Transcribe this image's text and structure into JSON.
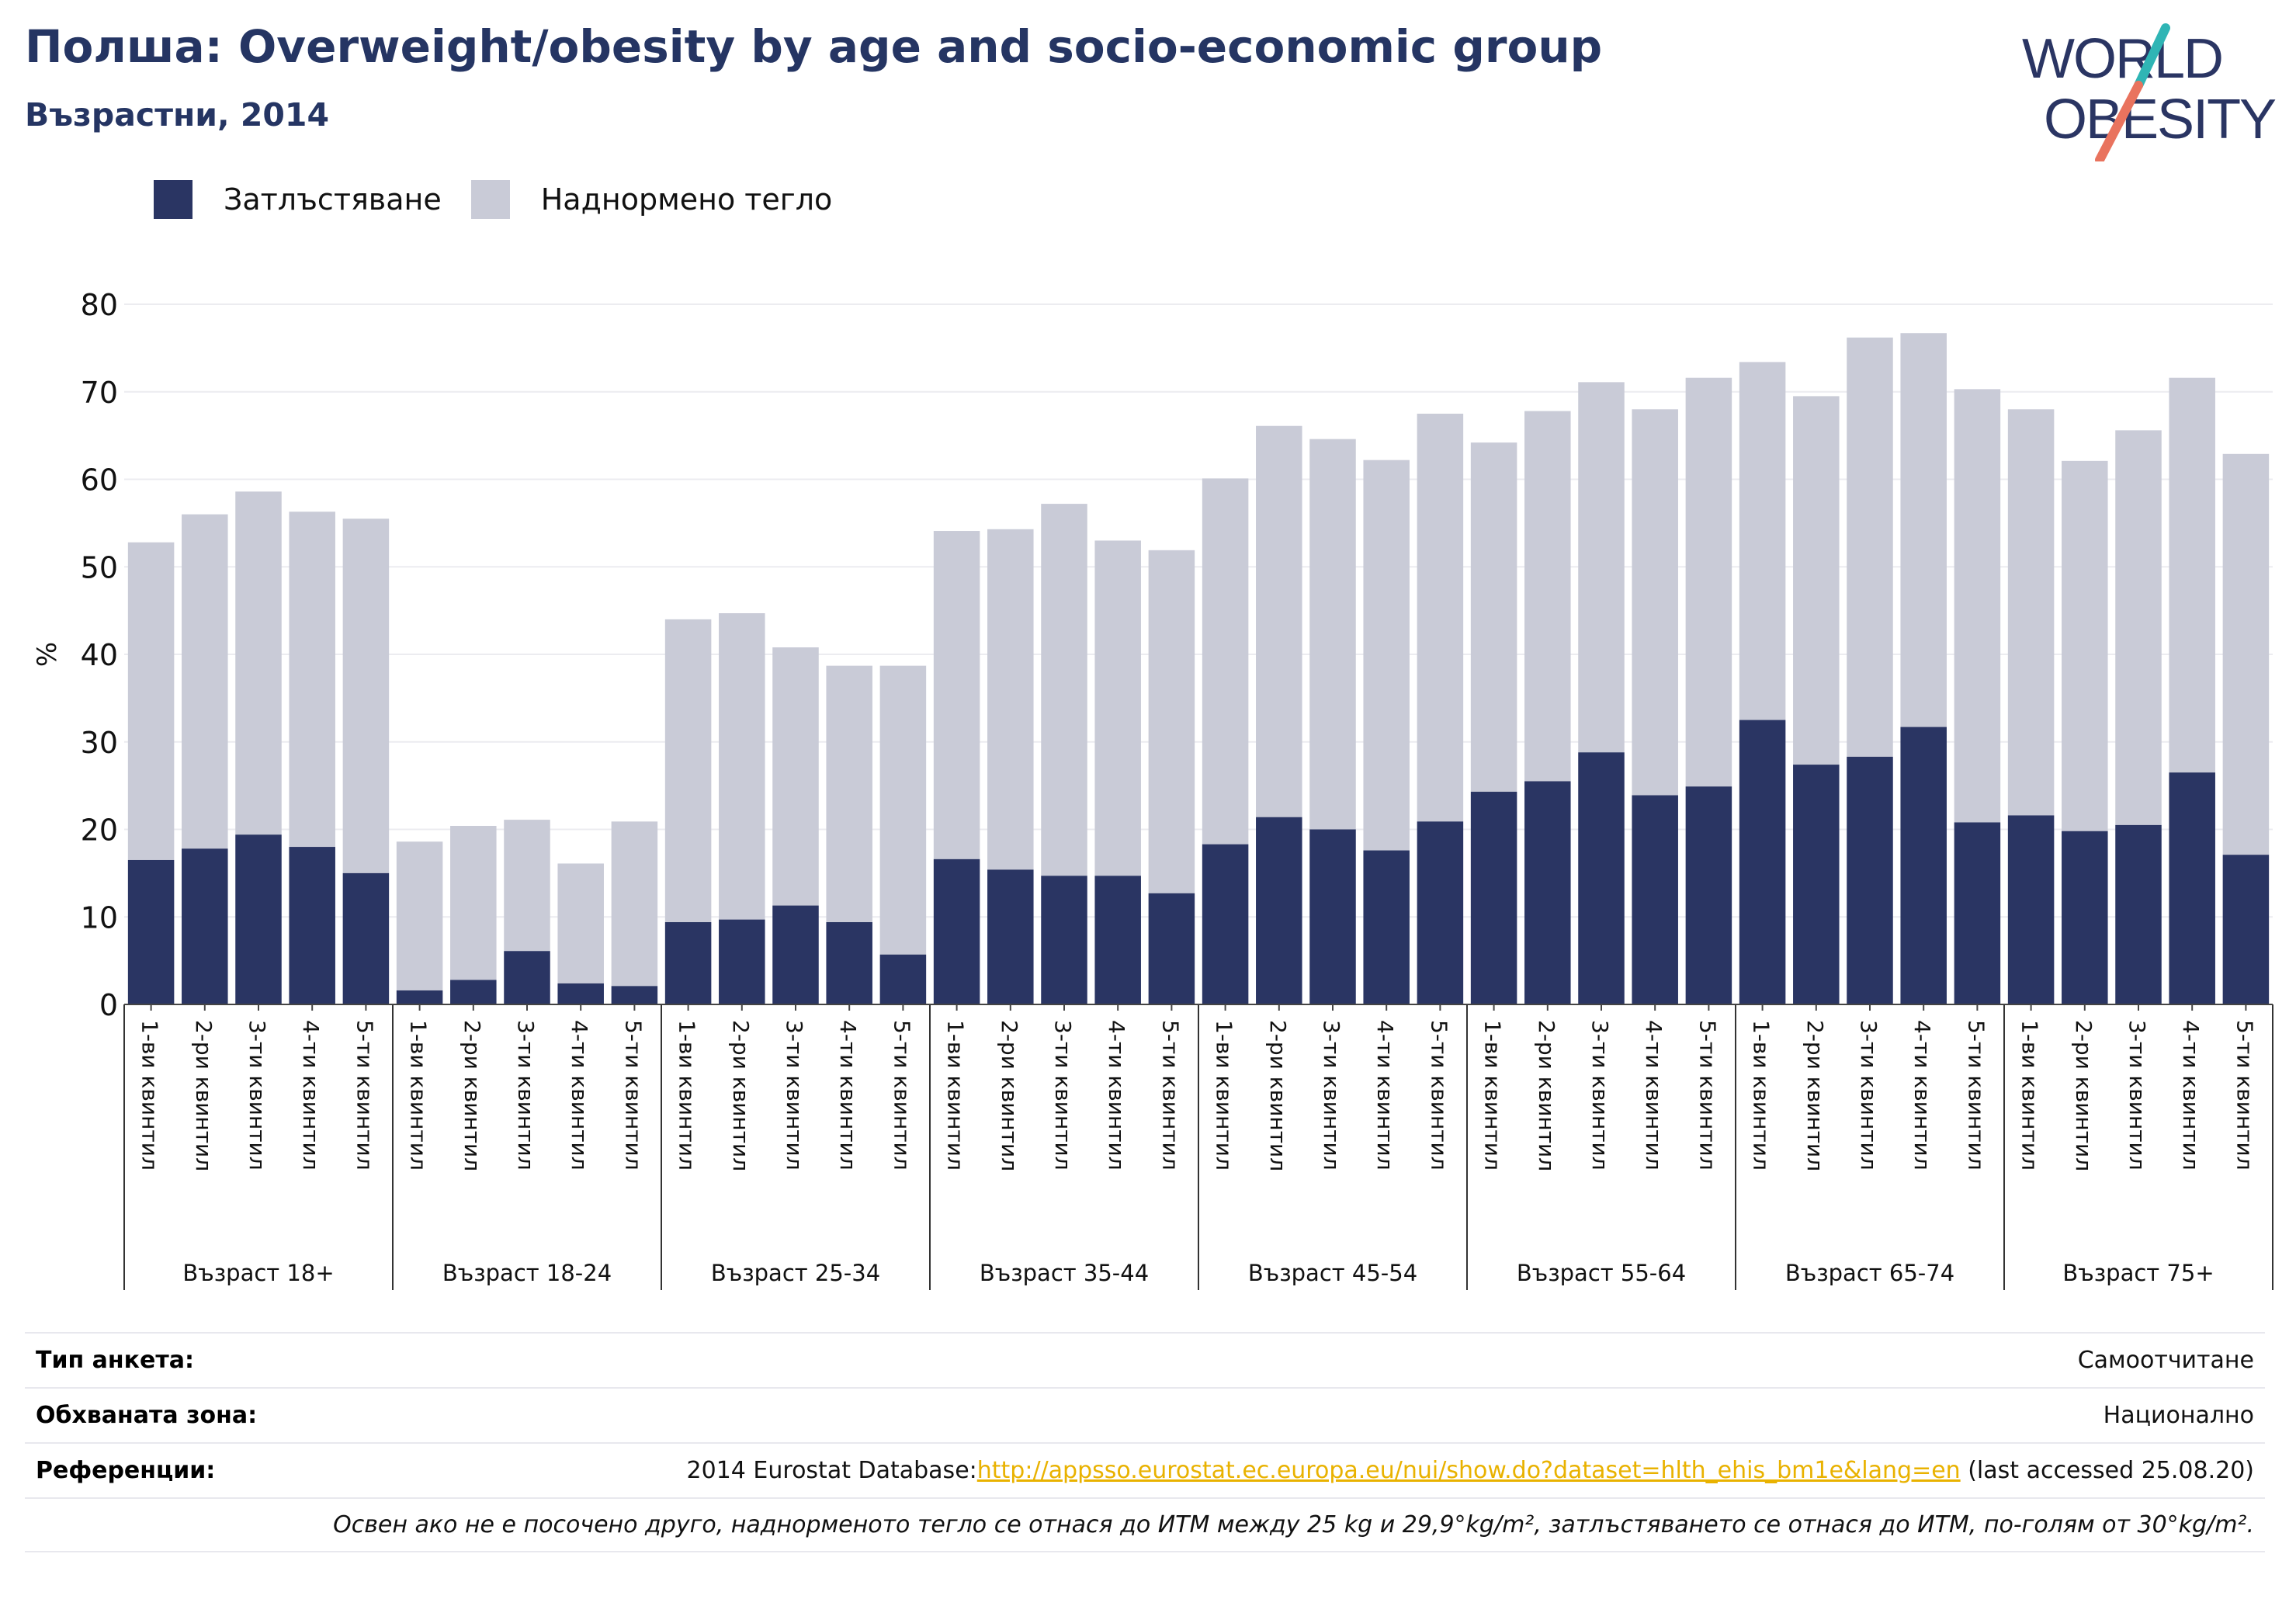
{
  "title": "Полша: Overweight/obesity by age and socio-economic group",
  "subtitle": "Възрастни, 2014",
  "logo": {
    "line1": "WORLD",
    "line2": "OBESITY"
  },
  "colors": {
    "obesity": "#2a3563",
    "overweight": "#c9cbd7",
    "title": "#253563",
    "link": "#e9b200"
  },
  "legend": [
    {
      "label": "Затлъстяване",
      "color": "#2a3563"
    },
    {
      "label": "Наднормено тегло",
      "color": "#c9cbd7"
    }
  ],
  "chart_data": {
    "type": "bar",
    "stacked": true,
    "ylabel": "%",
    "ylim": [
      0,
      80
    ],
    "yticks": [
      0,
      10,
      20,
      30,
      40,
      50,
      60,
      70,
      80
    ],
    "grid": true,
    "legend_position": "top-left",
    "groups": [
      "Възраст 18+",
      "Възраст 18-24",
      "Възраст 25-34",
      "Възраст 35-44",
      "Възраст 45-54",
      "Възраст 55-64",
      "Възраст 65-74",
      "Възраст 75+"
    ],
    "categories": [
      "1-ви квинтил",
      "2-ри квинтил",
      "3-ти квинтил",
      "4-ти квинтил",
      "5-ти квинтил"
    ],
    "series": [
      {
        "name": "Затлъстяване",
        "values": [
          [
            16.5,
            17.8,
            19.4,
            18.0,
            15.0
          ],
          [
            1.6,
            2.8,
            6.1,
            2.4,
            2.1
          ],
          [
            9.4,
            9.7,
            11.3,
            9.4,
            5.7
          ],
          [
            16.6,
            15.4,
            14.7,
            14.7,
            12.7
          ],
          [
            18.3,
            21.4,
            20.0,
            17.6,
            20.9
          ],
          [
            24.3,
            25.5,
            28.8,
            23.9,
            24.9
          ],
          [
            32.5,
            27.4,
            28.3,
            31.7,
            20.8
          ],
          [
            21.6,
            19.8,
            20.5,
            26.5,
            17.1
          ]
        ]
      },
      {
        "name": "Наднормено тегло",
        "values": [
          [
            36.3,
            38.2,
            39.2,
            38.3,
            40.5
          ],
          [
            17.0,
            17.6,
            15.0,
            13.7,
            18.8
          ],
          [
            34.6,
            35.0,
            29.5,
            29.3,
            33.0
          ],
          [
            37.5,
            38.9,
            42.5,
            38.3,
            39.2
          ],
          [
            41.8,
            44.7,
            44.6,
            44.6,
            46.6
          ],
          [
            39.9,
            42.3,
            42.3,
            44.1,
            46.7
          ],
          [
            40.9,
            42.1,
            47.9,
            45.0,
            49.5
          ],
          [
            46.4,
            42.3,
            45.1,
            45.1,
            45.8
          ]
        ]
      }
    ]
  },
  "footer": {
    "survey_label": "Тип анкета:",
    "survey_value": "Самоотчитане",
    "area_label": "Обхваната зона:",
    "area_value": "Национално",
    "ref_label": "Референции:",
    "ref_prefix": "2014 Eurostat Database:",
    "ref_link": "http://appsso.eurostat.ec.europa.eu/nui/show.do?dataset=hlth_ehis_bm1e&lang=en",
    "ref_suffix": " (last accessed 25.08.20)",
    "note": "Освен ако не е посочено друго, наднорменото тегло се отнася до ИТМ между 25 kg и 29,9°kg/m², затлъстяването се отнася до ИТМ, по-голям от 30°kg/m²."
  }
}
